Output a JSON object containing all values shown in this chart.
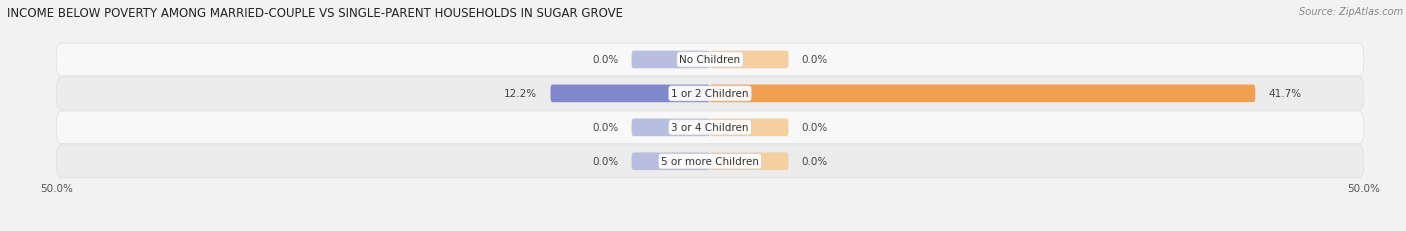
{
  "title": "INCOME BELOW POVERTY AMONG MARRIED-COUPLE VS SINGLE-PARENT HOUSEHOLDS IN SUGAR GROVE",
  "source": "Source: ZipAtlas.com",
  "categories": [
    "No Children",
    "1 or 2 Children",
    "3 or 4 Children",
    "5 or more Children"
  ],
  "married_values": [
    0.0,
    12.2,
    0.0,
    0.0
  ],
  "single_values": [
    0.0,
    41.7,
    0.0,
    0.0
  ],
  "married_color": "#8088cc",
  "single_color": "#f0a050",
  "married_color_light": "#b8bee0",
  "single_color_light": "#f5cfa0",
  "max_val": 50.0,
  "zero_bar_width": 6.0,
  "bar_height": 0.52,
  "bg_color": "#f2f2f2",
  "row_bg_light": "#f8f8f8",
  "row_bg_dark": "#ececec",
  "title_fontsize": 8.5,
  "label_fontsize": 7.5,
  "value_fontsize": 7.5,
  "tick_fontsize": 7.5,
  "source_fontsize": 7.0,
  "legend_fontsize": 7.5
}
